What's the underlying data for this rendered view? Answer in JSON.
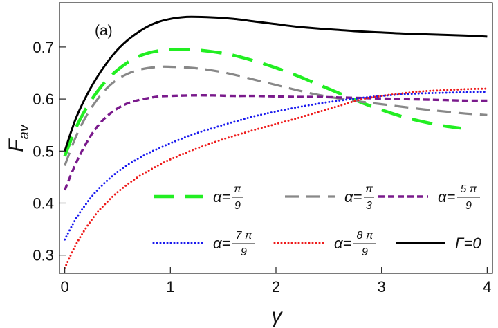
{
  "chart_data": {
    "type": "line",
    "panel_label": "(a)",
    "xlabel": "γ",
    "ylabel_main": "F",
    "ylabel_sub": "av",
    "xlim": [
      -0.05,
      4.05
    ],
    "ylim": [
      0.265,
      0.785
    ],
    "x_ticks": [
      0,
      1,
      2,
      3,
      4
    ],
    "x_tick_labels": [
      "0",
      "1",
      "2",
      "3",
      "4"
    ],
    "y_ticks": [
      0.3,
      0.4,
      0.5,
      0.6,
      0.7
    ],
    "y_tick_labels": [
      "0.3",
      "0.4",
      "0.5",
      "0.6",
      "0.7"
    ],
    "grid": false,
    "legend_position": "lower-right, two rows of three",
    "series": [
      {
        "name": "α=π/9",
        "label_prefix": "α=",
        "label_num": "π",
        "label_den": "9",
        "color": "#22ee22",
        "style": "long-dash",
        "x": [
          0,
          0.1,
          0.2,
          0.3,
          0.4,
          0.5,
          0.6,
          0.7,
          0.8,
          0.9,
          1.0,
          1.2,
          1.4,
          1.6,
          1.8,
          2.0,
          2.2,
          2.4,
          2.6,
          2.8,
          3.0,
          3.2,
          3.4,
          3.6,
          3.75
        ],
        "y": [
          0.49,
          0.542,
          0.581,
          0.612,
          0.637,
          0.656,
          0.671,
          0.682,
          0.689,
          0.693,
          0.695,
          0.695,
          0.691,
          0.684,
          0.673,
          0.66,
          0.645,
          0.628,
          0.611,
          0.594,
          0.579,
          0.566,
          0.556,
          0.548,
          0.544
        ]
      },
      {
        "name": "α=π/3",
        "label_prefix": "α=",
        "label_num": "π",
        "label_den": "3",
        "color": "#888888",
        "style": "dash",
        "x": [
          0,
          0.1,
          0.2,
          0.3,
          0.4,
          0.5,
          0.6,
          0.7,
          0.8,
          0.9,
          1.0,
          1.2,
          1.4,
          1.6,
          1.8,
          2.0,
          2.2,
          2.4,
          2.6,
          2.8,
          3.0,
          3.2,
          3.4,
          3.6,
          3.8,
          4.0
        ],
        "y": [
          0.472,
          0.525,
          0.566,
          0.597,
          0.621,
          0.638,
          0.649,
          0.656,
          0.66,
          0.662,
          0.662,
          0.66,
          0.655,
          0.647,
          0.637,
          0.627,
          0.617,
          0.608,
          0.601,
          0.595,
          0.59,
          0.585,
          0.58,
          0.576,
          0.572,
          0.569
        ]
      },
      {
        "name": "α=5π/9",
        "label_prefix": "α=",
        "label_num": "5 π",
        "label_den": "9",
        "color": "#7a1a8c",
        "style": "short-dash",
        "x": [
          0,
          0.1,
          0.2,
          0.3,
          0.4,
          0.5,
          0.6,
          0.7,
          0.8,
          0.9,
          1.0,
          1.2,
          1.4,
          1.6,
          1.8,
          2.0,
          2.2,
          2.4,
          2.6,
          2.8,
          3.0,
          3.2,
          3.4,
          3.6,
          3.8,
          4.0
        ],
        "y": [
          0.425,
          0.474,
          0.514,
          0.545,
          0.567,
          0.582,
          0.592,
          0.598,
          0.602,
          0.605,
          0.606,
          0.607,
          0.607,
          0.606,
          0.606,
          0.605,
          0.604,
          0.604,
          0.603,
          0.602,
          0.601,
          0.6,
          0.599,
          0.598,
          0.597,
          0.597
        ]
      },
      {
        "name": "α=7π/9",
        "label_prefix": "α=",
        "label_num": "7 π",
        "label_den": "9",
        "color": "#1a1aee",
        "style": "dotted",
        "x": [
          0,
          0.1,
          0.2,
          0.3,
          0.4,
          0.5,
          0.6,
          0.7,
          0.8,
          0.9,
          1.0,
          1.2,
          1.4,
          1.6,
          1.8,
          2.0,
          2.2,
          2.4,
          2.6,
          2.8,
          3.0,
          3.2,
          3.4,
          3.6,
          3.8,
          4.0
        ],
        "y": [
          0.33,
          0.368,
          0.398,
          0.423,
          0.443,
          0.46,
          0.474,
          0.486,
          0.497,
          0.506,
          0.515,
          0.531,
          0.544,
          0.556,
          0.567,
          0.576,
          0.584,
          0.591,
          0.597,
          0.602,
          0.606,
          0.609,
          0.611,
          0.612,
          0.613,
          0.614
        ]
      },
      {
        "name": "α=8π/9",
        "label_prefix": "α=",
        "label_num": "8 π",
        "label_den": "9",
        "color": "#ee1a1a",
        "style": "dotted",
        "x": [
          0,
          0.1,
          0.2,
          0.3,
          0.4,
          0.5,
          0.6,
          0.7,
          0.8,
          0.9,
          1.0,
          1.2,
          1.4,
          1.6,
          1.8,
          2.0,
          2.2,
          2.4,
          2.6,
          2.8,
          3.0,
          3.2,
          3.4,
          3.6,
          3.8,
          4.0
        ],
        "y": [
          0.275,
          0.318,
          0.352,
          0.38,
          0.402,
          0.421,
          0.437,
          0.451,
          0.463,
          0.474,
          0.484,
          0.501,
          0.516,
          0.529,
          0.541,
          0.552,
          0.563,
          0.575,
          0.587,
          0.599,
          0.606,
          0.611,
          0.615,
          0.617,
          0.619,
          0.62
        ]
      },
      {
        "name": "Γ=0",
        "label_text": "Γ=0",
        "color": "#000000",
        "style": "solid",
        "x": [
          0,
          0.1,
          0.2,
          0.3,
          0.4,
          0.5,
          0.6,
          0.7,
          0.8,
          0.9,
          1.0,
          1.1,
          1.2,
          1.4,
          1.6,
          1.8,
          2.0,
          2.2,
          2.5,
          2.8,
          3.0,
          3.2,
          3.5,
          3.8,
          4.0
        ],
        "y": [
          0.5,
          0.56,
          0.604,
          0.64,
          0.67,
          0.695,
          0.714,
          0.729,
          0.741,
          0.749,
          0.754,
          0.757,
          0.758,
          0.757,
          0.754,
          0.749,
          0.744,
          0.739,
          0.734,
          0.73,
          0.728,
          0.726,
          0.724,
          0.722,
          0.72
        ]
      }
    ]
  }
}
